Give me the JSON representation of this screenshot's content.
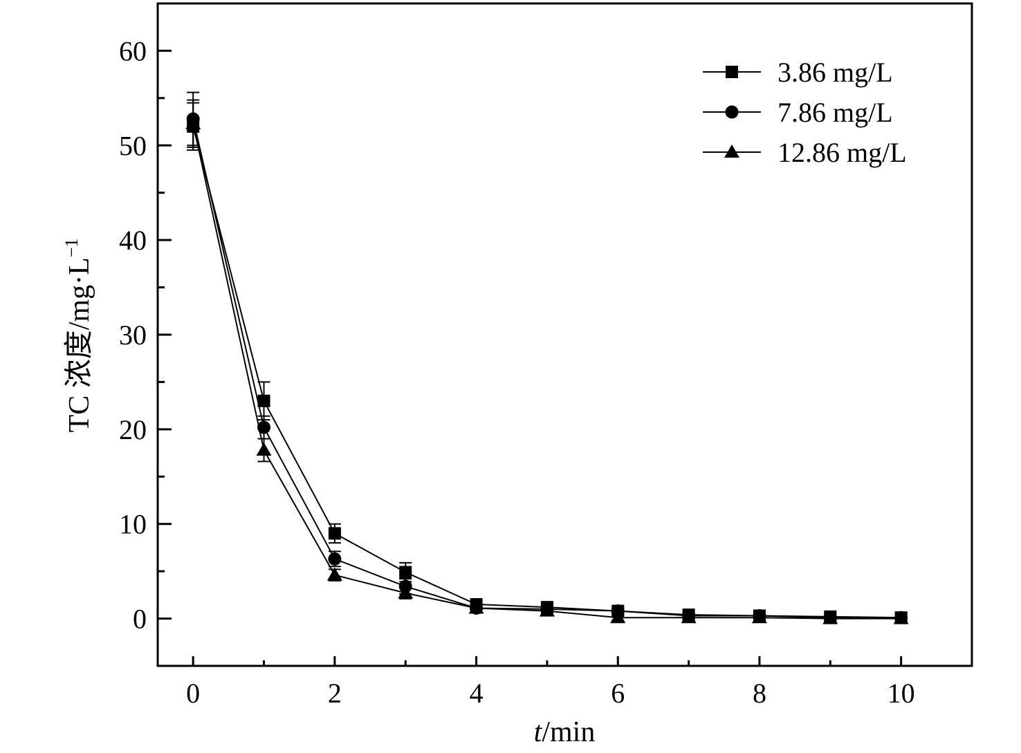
{
  "chart_data": {
    "type": "line",
    "title": "",
    "xlabel_italic": "t",
    "xlabel_rest": "/min",
    "ylabel_main": "TC 浓度/mg·L",
    "ylabel_sup": "−1",
    "xlim": [
      -0.5,
      11
    ],
    "ylim": [
      -5,
      65
    ],
    "xticks": [
      0,
      2,
      4,
      6,
      8,
      10
    ],
    "yticks": [
      0,
      10,
      20,
      30,
      40,
      50,
      60
    ],
    "x": [
      0,
      1,
      2,
      3,
      4,
      5,
      6,
      7,
      8,
      9,
      10
    ],
    "legend_position": "top-right",
    "grid": false,
    "series": [
      {
        "name": "3.86 mg/L",
        "marker": "square",
        "values": [
          52.0,
          23.0,
          9.0,
          4.9,
          1.5,
          1.2,
          0.8,
          0.4,
          0.3,
          0.2,
          0.1
        ],
        "errors": [
          2.5,
          2.0,
          1.0,
          1.0,
          0.4,
          0.3,
          0.3,
          0.3,
          0.3,
          0.4,
          0.5
        ]
      },
      {
        "name": "7.86 mg/L",
        "marker": "circle",
        "values": [
          52.8,
          20.2,
          6.3,
          3.4,
          1.1,
          1.0,
          0.8,
          0.3,
          0.3,
          0.1,
          0.1
        ],
        "errors": [
          2.8,
          1.2,
          0.8,
          0.8,
          0.4,
          0.3,
          0.3,
          0.3,
          0.3,
          0.4,
          0.5
        ]
      },
      {
        "name": "12.86 mg/L",
        "marker": "triangle",
        "values": [
          52.3,
          17.8,
          4.6,
          2.7,
          1.1,
          0.8,
          0.1,
          0.1,
          0.1,
          0.0,
          0.0
        ],
        "errors": [
          2.5,
          1.2,
          0.6,
          0.6,
          0.4,
          0.3,
          0.3,
          0.3,
          0.3,
          0.4,
          0.5
        ]
      }
    ]
  }
}
